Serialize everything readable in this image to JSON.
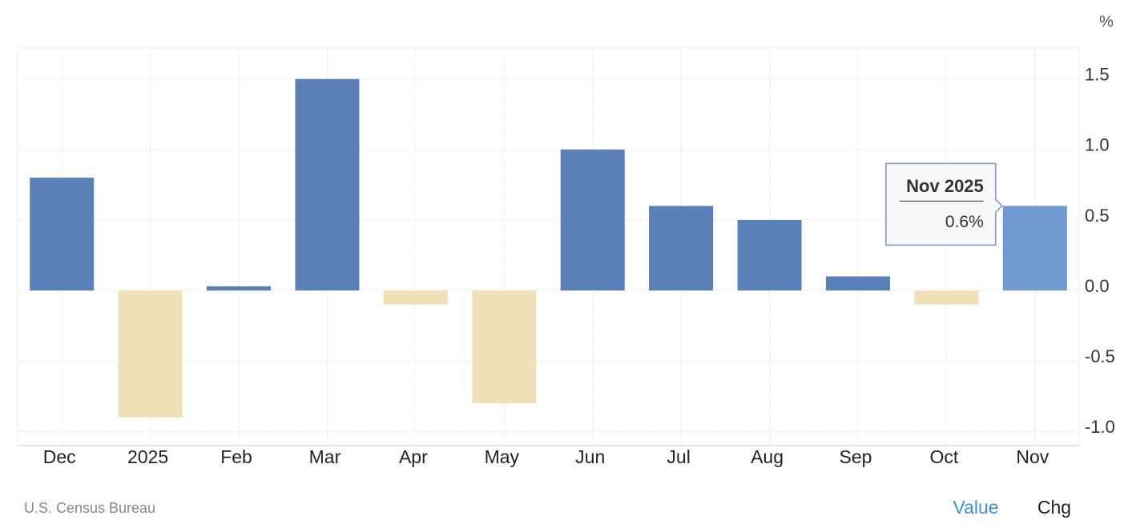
{
  "chart_data": {
    "type": "bar",
    "unit": "%",
    "categories": [
      "Dec",
      "2025",
      "Feb",
      "Mar",
      "Apr",
      "May",
      "Jun",
      "Jul",
      "Aug",
      "Sep",
      "Oct",
      "Nov"
    ],
    "values": [
      0.8,
      -0.9,
      0.03,
      1.5,
      -0.1,
      -0.8,
      1.0,
      0.6,
      0.5,
      0.1,
      -0.1,
      0.6
    ],
    "colors": [
      "#5b7fb8",
      "#f0e0b8",
      "#5b7fb8",
      "#5b7fb8",
      "#f0e0b8",
      "#f0e0b8",
      "#5b7fb8",
      "#5b7fb8",
      "#5b7fb8",
      "#5b7fb8",
      "#f0e0b8",
      "#7199d2"
    ],
    "ylim": [
      -1.1,
      1.72
    ],
    "yticks": [
      {
        "value": -1,
        "label": "-1.0"
      },
      -0.5,
      {
        "value": 0,
        "label": "0.0"
      },
      0.5,
      {
        "value": 1,
        "label": "1.0"
      },
      1.5
    ],
    "grid": true,
    "tooltip": {
      "title": "Nov 2025",
      "text": "0.6%"
    },
    "source": "U.S. Census Bureau",
    "buttons": [
      "Value",
      "Chg"
    ]
  }
}
